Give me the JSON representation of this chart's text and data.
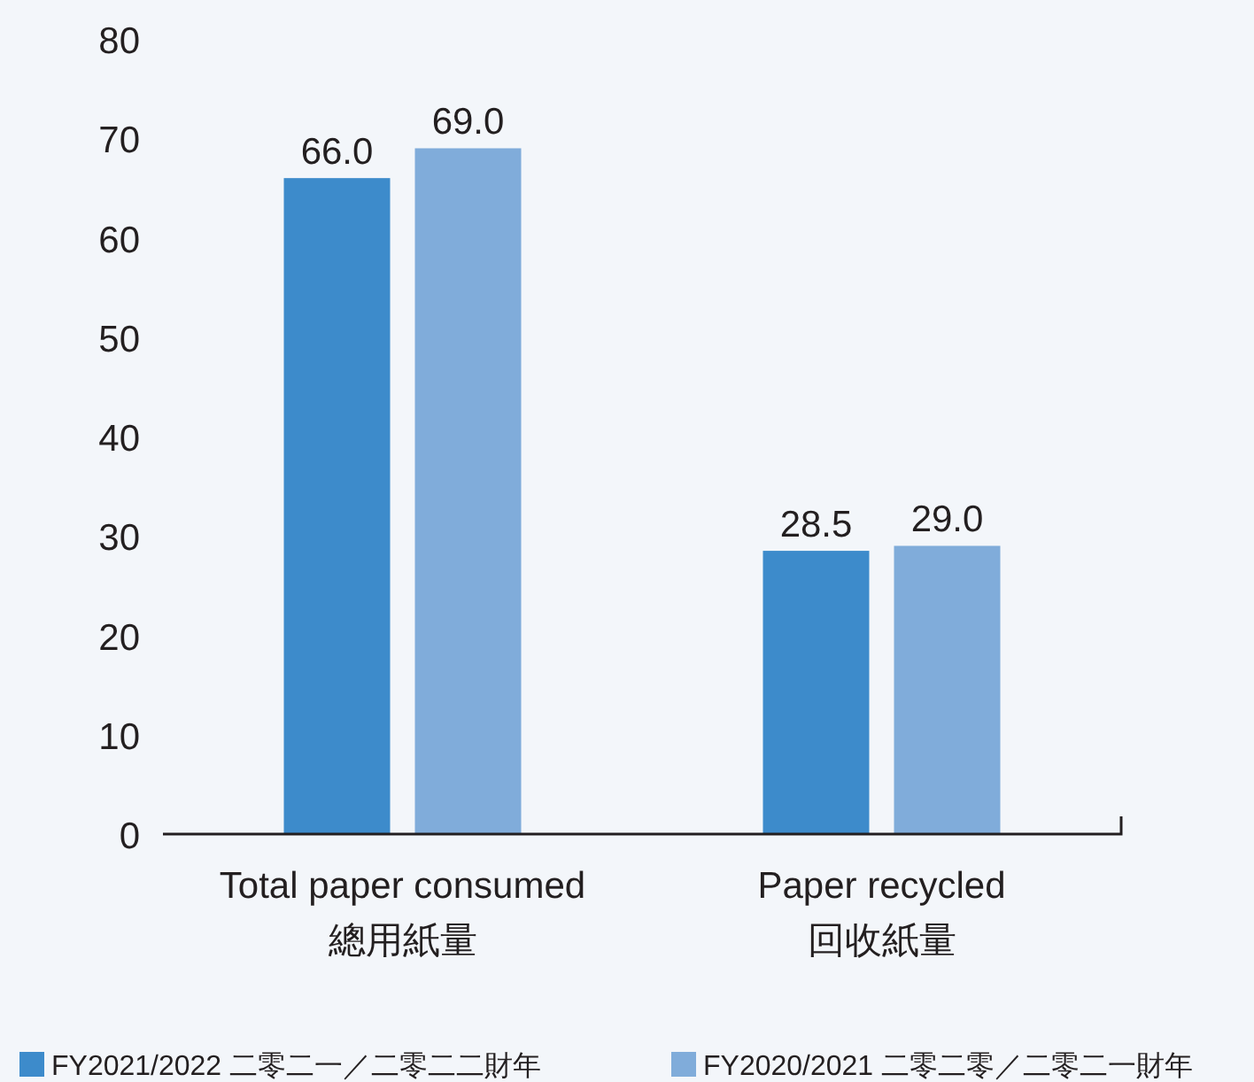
{
  "chart_data": {
    "type": "bar",
    "categories": [
      "Total paper consumed\n總用紙量",
      "Paper recycled\n回收紙量"
    ],
    "series": [
      {
        "name": "FY2021/2022 二零二一／二零二二財年",
        "color": "#3d8bcb",
        "values": [
          66.0,
          28.5
        ],
        "value_labels": [
          "66.0",
          "28.5"
        ]
      },
      {
        "name": "FY2020/2021 二零二零／二零二一財年",
        "color": "#80acda",
        "values": [
          69.0,
          29.0
        ],
        "value_labels": [
          "69.0",
          "29.0"
        ]
      }
    ],
    "ylim": [
      0,
      80
    ],
    "yticks": [
      0,
      10,
      20,
      30,
      40,
      50,
      60,
      70,
      80
    ],
    "legend": "bottom",
    "grid": false
  }
}
